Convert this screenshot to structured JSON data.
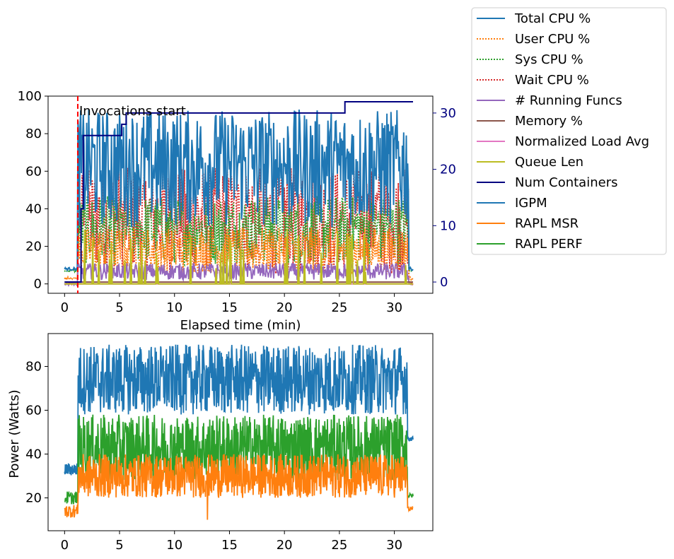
{
  "colors": {
    "blue": "#1f77b4",
    "orange": "#ff7f0e",
    "green": "#2ca02c",
    "red": "#d62728",
    "purple": "#9467bd",
    "brown": "#8c564b",
    "pink": "#e377c2",
    "olive": "#bcbd22",
    "navy": "#000080"
  },
  "legend": {
    "placement": "outside top-right",
    "entries": [
      {
        "label": "Total CPU %",
        "color": "#1f77b4",
        "style": "solid"
      },
      {
        "label": "User CPU %",
        "color": "#ff7f0e",
        "style": "dotted"
      },
      {
        "label": "Sys CPU %",
        "color": "#2ca02c",
        "style": "dotted"
      },
      {
        "label": "Wait CPU %",
        "color": "#d62728",
        "style": "dotted"
      },
      {
        "label": "# Running Funcs",
        "color": "#9467bd",
        "style": "solid"
      },
      {
        "label": "Memory %",
        "color": "#8c564b",
        "style": "solid"
      },
      {
        "label": "Normalized Load Avg",
        "color": "#e377c2",
        "style": "solid"
      },
      {
        "label": "Queue Len",
        "color": "#bcbd22",
        "style": "solid"
      },
      {
        "label": "Num Containers",
        "color": "#000080",
        "style": "solid"
      },
      {
        "label": "IGPM",
        "color": "#1f77b4",
        "style": "solid"
      },
      {
        "label": "RAPL MSR",
        "color": "#ff7f0e",
        "style": "solid"
      },
      {
        "label": "RAPL PERF",
        "color": "#2ca02c",
        "style": "solid"
      }
    ]
  },
  "chart_data": [
    {
      "type": "line",
      "title": "",
      "xlabel": "Elapsed time (min)",
      "ylabel": "",
      "xlim": [
        -1.5,
        33.5
      ],
      "ylim": [
        -5,
        100
      ],
      "y2lim": [
        -2,
        33
      ],
      "xticks": [
        "0",
        "5",
        "10",
        "15",
        "20",
        "25",
        "30"
      ],
      "yticks": [
        "0",
        "20",
        "40",
        "60",
        "80",
        "100"
      ],
      "y2ticks": [
        "0",
        "10",
        "20",
        "30"
      ],
      "annotation": {
        "text": "Invocations start",
        "x": 1.2
      },
      "series": [
        {
          "name": "Total CPU %",
          "idle": 8,
          "low": 30,
          "high": 93,
          "style": "solid"
        },
        {
          "name": "User CPU %",
          "idle": 3,
          "low": 5,
          "high": 30,
          "style": "dotted"
        },
        {
          "name": "Sys CPU %",
          "idle": 7,
          "low": 10,
          "high": 47,
          "style": "dotted"
        },
        {
          "name": "Wait CPU %",
          "idle": 0,
          "low": 5,
          "high": 62,
          "style": "dotted"
        },
        {
          "name": "# Running Funcs",
          "idle": 0,
          "low": 2,
          "high": 11,
          "style": "solid"
        },
        {
          "name": "Memory %",
          "value": 1,
          "style": "solid"
        },
        {
          "name": "Normalized Load Avg",
          "value": 0,
          "style": "solid"
        },
        {
          "name": "Queue Len",
          "base": 0,
          "spike_max": 30,
          "style": "solid"
        },
        {
          "name": "Num Containers",
          "axis": "right",
          "style": "steps",
          "x": [
            0,
            1.2,
            1.5,
            1.7,
            4.5,
            5.2,
            5.6,
            6.5,
            25.5,
            31.7
          ],
          "y": [
            0,
            0,
            13,
            26,
            26,
            28,
            30,
            30,
            32,
            32
          ]
        }
      ]
    },
    {
      "type": "line",
      "title": "",
      "xlabel": "",
      "ylabel": "Power (Watts)",
      "xlim": [
        -1.5,
        33.5
      ],
      "ylim": [
        5,
        95
      ],
      "xticks": [
        "0",
        "5",
        "10",
        "15",
        "20",
        "25",
        "30"
      ],
      "yticks": [
        "20",
        "40",
        "60",
        "80"
      ],
      "series": [
        {
          "name": "IGPM",
          "idle": 33,
          "low": 58,
          "high": 90,
          "tail": 47
        },
        {
          "name": "RAPL PERF",
          "idle": 20,
          "low": 28,
          "high": 58,
          "tail": 21
        },
        {
          "name": "RAPL MSR",
          "idle": 14,
          "low": 20,
          "high": 40,
          "tail": 15,
          "outlier": {
            "x": 13.0,
            "y": 10
          }
        }
      ]
    }
  ]
}
